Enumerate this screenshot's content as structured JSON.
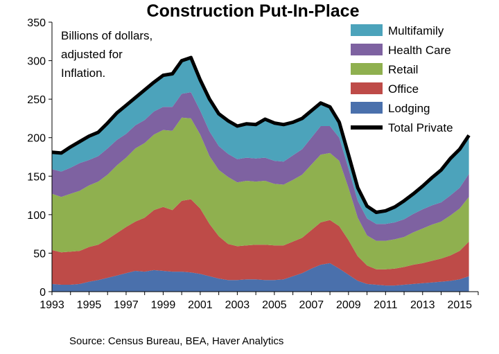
{
  "chart_data": {
    "type": "area",
    "title": "Construction Put-In-Place",
    "note_lines": [
      "Billions of dollars,",
      "adjusted for",
      "Inflation."
    ],
    "source": "Source: Census Bureau, BEA, Haver Analytics",
    "ylim": [
      0,
      350
    ],
    "y_ticks": [
      "0",
      "50",
      "100",
      "150",
      "200",
      "250",
      "300",
      "350"
    ],
    "x_tick_labels": [
      "1993",
      "1995",
      "1997",
      "1999",
      "2001",
      "2003",
      "2005",
      "2007",
      "2009",
      "2011",
      "2013",
      "2015"
    ],
    "xlim": [
      1993,
      2016
    ],
    "grid": false,
    "legend_position": "top-right",
    "x": [
      1993,
      1993.5,
      1994,
      1994.5,
      1995,
      1995.5,
      1996,
      1996.5,
      1997,
      1997.5,
      1998,
      1998.5,
      1999,
      1999.5,
      2000,
      2000.5,
      2001,
      2001.5,
      2002,
      2002.5,
      2003,
      2003.5,
      2004,
      2004.5,
      2005,
      2005.5,
      2006,
      2006.5,
      2007,
      2007.5,
      2008,
      2008.5,
      2009,
      2009.5,
      2010,
      2010.5,
      2011,
      2011.5,
      2012,
      2012.5,
      2013,
      2013.5,
      2014,
      2014.5,
      2015,
      2015.5
    ],
    "series": [
      {
        "name": "Lodging",
        "color": "#4A70AC",
        "values": [
          10,
          9,
          9,
          10,
          13,
          15,
          18,
          21,
          24,
          27,
          26,
          28,
          27,
          26,
          26,
          25,
          23,
          20,
          17,
          15,
          15,
          16,
          16,
          15,
          15,
          16,
          20,
          24,
          30,
          35,
          37,
          30,
          22,
          14,
          10,
          9,
          8,
          8,
          9,
          10,
          11,
          12,
          13,
          14,
          16,
          20
        ]
      },
      {
        "name": "Office",
        "color": "#BE4B48",
        "values": [
          44,
          42,
          43,
          43,
          45,
          46,
          50,
          55,
          60,
          64,
          70,
          78,
          83,
          80,
          92,
          95,
          85,
          68,
          55,
          47,
          44,
          44,
          45,
          46,
          45,
          44,
          45,
          46,
          50,
          55,
          56,
          55,
          45,
          32,
          24,
          20,
          21,
          22,
          23,
          25,
          26,
          28,
          30,
          33,
          37,
          45
        ]
      },
      {
        "name": "Retail",
        "color": "#8FB04F",
        "values": [
          73,
          72,
          75,
          78,
          80,
          82,
          84,
          88,
          90,
          95,
          97,
          98,
          100,
          103,
          108,
          105,
          96,
          88,
          86,
          87,
          83,
          84,
          82,
          83,
          80,
          79,
          80,
          82,
          85,
          88,
          87,
          85,
          68,
          50,
          39,
          37,
          37,
          38,
          39,
          42,
          45,
          47,
          48,
          52,
          55,
          58
        ]
      },
      {
        "name": "Health Care",
        "color": "#7E62A1",
        "values": [
          32,
          33,
          34,
          36,
          33,
          33,
          34,
          33,
          31,
          30,
          30,
          30,
          30,
          31,
          31,
          34,
          31,
          32,
          31,
          30,
          30,
          30,
          30,
          30,
          30,
          30,
          32,
          33,
          35,
          37,
          35,
          30,
          25,
          22,
          22,
          22,
          22,
          22,
          23,
          24,
          25,
          25,
          25,
          26,
          27,
          30
        ]
      },
      {
        "name": "Multifamily",
        "color": "#4CA3BB",
        "values": [
          22,
          24,
          27,
          28,
          31,
          31,
          33,
          35,
          37,
          36,
          39,
          38,
          41,
          43,
          43,
          45,
          40,
          42,
          42,
          43,
          43,
          44,
          44,
          50,
          49,
          48,
          43,
          40,
          35,
          30,
          25,
          20,
          18,
          17,
          16,
          15,
          17,
          20,
          24,
          26,
          30,
          36,
          42,
          48,
          50,
          50
        ]
      }
    ],
    "total": {
      "name": "Total Private",
      "color": "#000000",
      "values": [
        181,
        180,
        188,
        195,
        202,
        207,
        219,
        232,
        242,
        252,
        262,
        272,
        281,
        283,
        300,
        304,
        275,
        250,
        231,
        222,
        215,
        218,
        217,
        224,
        219,
        217,
        220,
        225,
        235,
        245,
        240,
        220,
        178,
        135,
        111,
        103,
        105,
        110,
        118,
        127,
        137,
        148,
        158,
        173,
        185,
        203
      ]
    }
  }
}
